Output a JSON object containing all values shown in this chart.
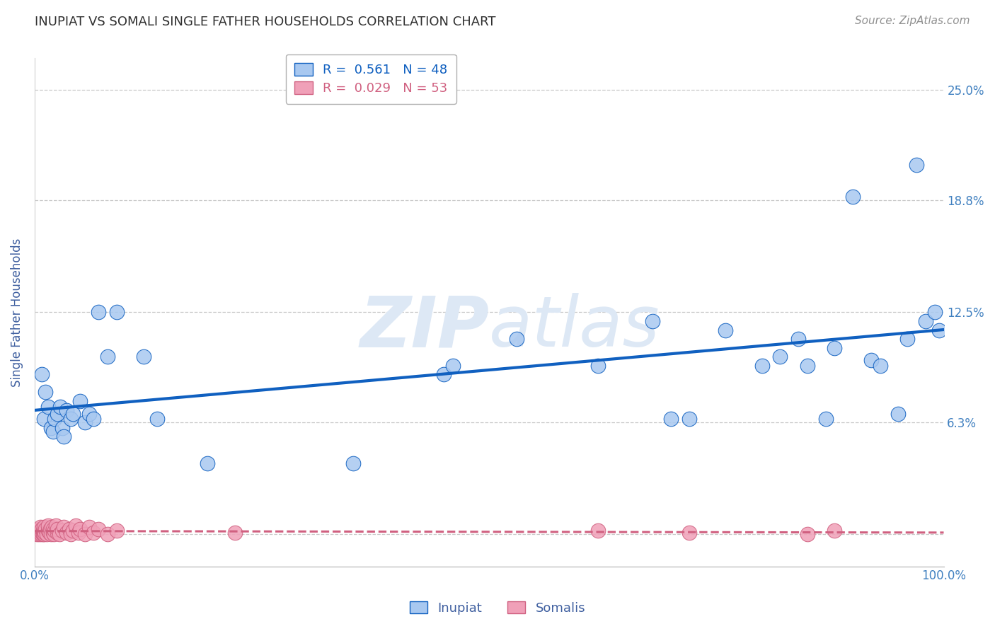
{
  "title": "INUPIAT VS SOMALI SINGLE FATHER HOUSEHOLDS CORRELATION CHART",
  "source": "Source: ZipAtlas.com",
  "ylabel": "Single Father Households",
  "xlim": [
    0.0,
    1.0
  ],
  "ylim": [
    -0.018,
    0.268
  ],
  "yticks": [
    0.0,
    0.063,
    0.125,
    0.188,
    0.25
  ],
  "ytick_labels": [
    "",
    "6.3%",
    "12.5%",
    "18.8%",
    "25.0%"
  ],
  "xticks": [
    0.0,
    0.2,
    0.4,
    0.6,
    0.8,
    1.0
  ],
  "xtick_labels": [
    "0.0%",
    "",
    "",
    "",
    "",
    "100.0%"
  ],
  "inupiat_R": 0.561,
  "inupiat_N": 48,
  "somali_R": 0.029,
  "somali_N": 53,
  "inupiat_color": "#A8C8F0",
  "somali_color": "#F0A0B8",
  "inupiat_line_color": "#1060C0",
  "somali_line_color": "#D06080",
  "title_color": "#303030",
  "axis_label_color": "#4060A0",
  "tick_color": "#4080C0",
  "watermark_color": "#DDE8F5",
  "background_color": "#FFFFFF",
  "legend_border_color": "#B0B0B0",
  "inupiat_x": [
    0.008,
    0.01,
    0.012,
    0.015,
    0.018,
    0.02,
    0.022,
    0.025,
    0.028,
    0.03,
    0.032,
    0.035,
    0.04,
    0.042,
    0.05,
    0.055,
    0.06,
    0.065,
    0.07,
    0.08,
    0.09,
    0.12,
    0.135,
    0.19,
    0.35,
    0.45,
    0.46,
    0.53,
    0.62,
    0.68,
    0.7,
    0.72,
    0.76,
    0.8,
    0.82,
    0.84,
    0.85,
    0.87,
    0.88,
    0.9,
    0.92,
    0.93,
    0.95,
    0.96,
    0.97,
    0.98,
    0.99,
    0.995
  ],
  "inupiat_y": [
    0.09,
    0.065,
    0.08,
    0.072,
    0.06,
    0.058,
    0.065,
    0.068,
    0.072,
    0.06,
    0.055,
    0.07,
    0.065,
    0.068,
    0.075,
    0.063,
    0.068,
    0.065,
    0.125,
    0.1,
    0.125,
    0.1,
    0.065,
    0.04,
    0.04,
    0.09,
    0.095,
    0.11,
    0.095,
    0.12,
    0.065,
    0.065,
    0.115,
    0.095,
    0.1,
    0.11,
    0.095,
    0.065,
    0.105,
    0.19,
    0.098,
    0.095,
    0.068,
    0.11,
    0.208,
    0.12,
    0.125,
    0.115
  ],
  "somali_x": [
    0.002,
    0.003,
    0.004,
    0.005,
    0.005,
    0.006,
    0.006,
    0.007,
    0.007,
    0.008,
    0.008,
    0.009,
    0.009,
    0.01,
    0.01,
    0.01,
    0.011,
    0.012,
    0.013,
    0.015,
    0.015,
    0.016,
    0.017,
    0.018,
    0.019,
    0.02,
    0.02,
    0.021,
    0.022,
    0.023,
    0.025,
    0.025,
    0.027,
    0.03,
    0.032,
    0.035,
    0.038,
    0.04,
    0.042,
    0.045,
    0.048,
    0.05,
    0.055,
    0.06,
    0.065,
    0.07,
    0.08,
    0.09,
    0.22,
    0.62,
    0.72,
    0.85,
    0.88
  ],
  "somali_y": [
    0.0,
    0.001,
    0.002,
    0.0,
    0.003,
    0.001,
    0.004,
    0.0,
    0.002,
    0.001,
    0.003,
    0.0,
    0.002,
    0.0,
    0.002,
    0.004,
    0.001,
    0.003,
    0.0,
    0.002,
    0.005,
    0.001,
    0.003,
    0.0,
    0.004,
    0.001,
    0.003,
    0.0,
    0.002,
    0.005,
    0.001,
    0.003,
    0.0,
    0.002,
    0.004,
    0.001,
    0.003,
    0.0,
    0.002,
    0.005,
    0.001,
    0.003,
    0.0,
    0.004,
    0.001,
    0.003,
    0.0,
    0.002,
    0.001,
    0.002,
    0.001,
    0.0,
    0.002
  ]
}
